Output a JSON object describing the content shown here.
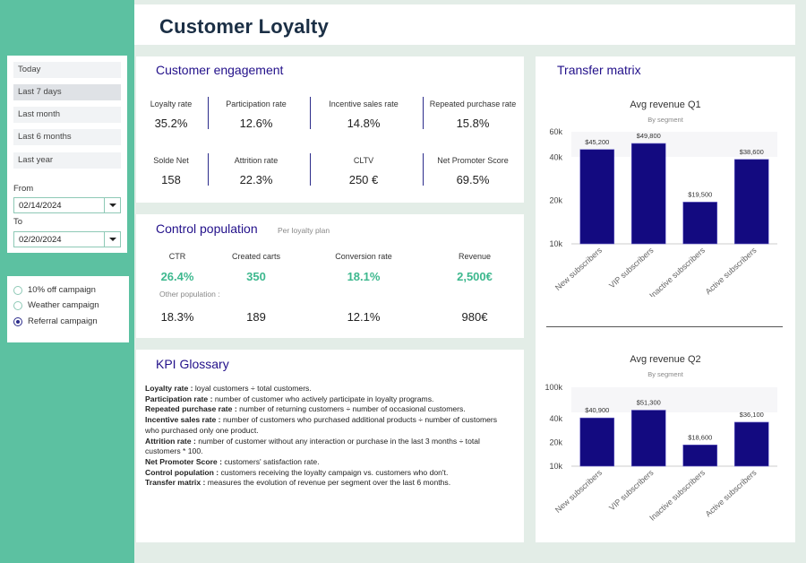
{
  "page_title": "Customer Loyalty",
  "sidebar": {
    "ranges": [
      "Today",
      "Last 7 days",
      "Last month",
      "Last 6 months",
      "Last year"
    ],
    "active_range": 1,
    "from_label": "From",
    "from_value": "02/14/2024",
    "to_label": "To",
    "to_value": "02/20/2024",
    "campaigns": [
      "10% off campaign",
      "Weather campaign",
      "Referral campaign"
    ],
    "selected_campaign": 2
  },
  "engagement": {
    "title": "Customer engagement",
    "kpis": [
      {
        "label": "Loyalty rate",
        "value": "35.2%"
      },
      {
        "label": "Participation rate",
        "value": "12.6%"
      },
      {
        "label": "Incentive sales rate",
        "value": "14.8%"
      },
      {
        "label": "Repeated purchase rate",
        "value": "15.8%"
      },
      {
        "label": "Solde Net",
        "value": "158"
      },
      {
        "label": "Attrition rate",
        "value": "22.3%"
      },
      {
        "label": "CLTV",
        "value": "250 €"
      },
      {
        "label": "Net Promoter Score",
        "value": "69.5%"
      }
    ]
  },
  "control": {
    "title": "Control population",
    "subtitle": "Per loyalty plan",
    "headers": [
      "CTR",
      "Created carts",
      "Conversion rate",
      "Revenue"
    ],
    "loyalty_values": [
      "26.4%",
      "350",
      "18.1%",
      "2,500€"
    ],
    "other_label": "Other population :",
    "other_values": [
      "18.3%",
      "189",
      "12.1%",
      "980€"
    ]
  },
  "glossary": {
    "title": "KPI Glossary",
    "items": [
      {
        "term": "Loyalty rate :",
        "def": " loyal customers ÷ total customers."
      },
      {
        "term": "Participation rate :",
        "def": " number of customer who actively participate in loyalty programs."
      },
      {
        "term": "Repeated purchase rate :",
        "def": " number of returning customers ÷ number of occasional customers."
      },
      {
        "term": "Incentive sales rate :",
        "def": " number of customers who purchased additional products ÷ number of customers who purchased only one product."
      },
      {
        "term": "Attrition rate :",
        "def": " number of customer without any interaction or purchase in the last 3 months ÷ total customers * 100."
      },
      {
        "term": "Net Promoter Score :",
        "def": " customers' satisfaction rate."
      },
      {
        "term": "Control population :",
        "def": " customers receiving the loyalty campaign vs. customers who don't."
      },
      {
        "term": "Transfer matrix :",
        "def": " measures the evolution of revenue per segment over the last 6 months."
      }
    ]
  },
  "transfer": {
    "title": "Transfer matrix"
  },
  "colors": {
    "bar": "#130a80",
    "accent_green": "#3db88e",
    "sidebar": "#5cc1a1",
    "title_navy": "#22108a"
  },
  "chart_data": [
    {
      "type": "bar",
      "title": "Avg revenue Q1",
      "subtitle": "By segment",
      "categories": [
        "New subscribers",
        "VIP subscribers",
        "Inactive subscribers",
        "Active subscribers"
      ],
      "values": [
        45200,
        49800,
        19500,
        38600
      ],
      "value_labels": [
        "$45,200",
        "$49,800",
        "$19,500",
        "$38,600"
      ],
      "y_ticks": [
        10000,
        20000,
        40000,
        60000
      ],
      "y_tick_labels": [
        "10k",
        "20k",
        "40k",
        "60k"
      ],
      "scale": "log",
      "ylim": [
        10000,
        60000
      ]
    },
    {
      "type": "bar",
      "title": "Avg revenue Q2",
      "subtitle": "By segment",
      "categories": [
        "New subscribers",
        "VIP subscribers",
        "Inactive subscribers",
        "Active subscribers"
      ],
      "values": [
        40900,
        51300,
        18600,
        36100
      ],
      "value_labels": [
        "$40,900",
        "$51,300",
        "$18,600",
        "$36,100"
      ],
      "y_ticks": [
        10000,
        20000,
        40000,
        100000
      ],
      "y_tick_labels": [
        "10k",
        "20k",
        "40k",
        "100k"
      ],
      "scale": "log",
      "ylim": [
        10000,
        100000
      ]
    }
  ]
}
